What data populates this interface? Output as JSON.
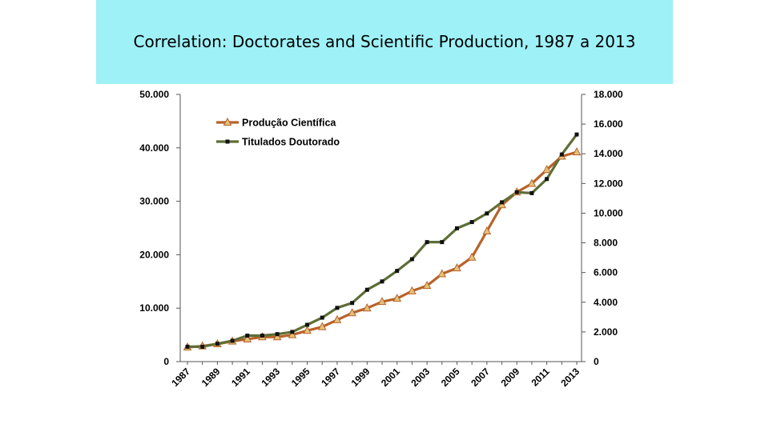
{
  "slide": {
    "title": "Correlation: Doctorates and Scientific Production, 1987 a 2013",
    "banner_color": "#9ef1f7"
  },
  "chart_data": {
    "type": "line",
    "title": "Correlation: Doctorates and Scientific Production, 1987 a 2013",
    "x": [
      1987,
      1988,
      1989,
      1990,
      1991,
      1992,
      1993,
      1994,
      1995,
      1996,
      1997,
      1998,
      1999,
      2000,
      2001,
      2002,
      2003,
      2004,
      2005,
      2006,
      2007,
      2008,
      2009,
      2010,
      2011,
      2012,
      2013
    ],
    "x_tick_labels": [
      "1987",
      "1989",
      "1991",
      "1993",
      "1995",
      "1997",
      "1999",
      "2001",
      "2003",
      "2005",
      "2007",
      "2009",
      "2011",
      "2013"
    ],
    "y_left_ticks": [
      "0",
      "10.000",
      "20.000",
      "30.000",
      "40.000",
      "50.000"
    ],
    "y_right_ticks": [
      "0",
      "2.000",
      "4.000",
      "6.000",
      "8.000",
      "10.000",
      "12.000",
      "14.000",
      "16.000",
      "18.000"
    ],
    "ylim_left": [
      0,
      50000
    ],
    "ylim_right": [
      0,
      18000
    ],
    "legend_position": "top-left",
    "series": [
      {
        "name": "Produção Científica",
        "axis": "left",
        "color": "#b8622a",
        "marker": "triangle",
        "marker_color": "#e3c27a",
        "values": [
          2700,
          2900,
          3300,
          3800,
          4200,
          4600,
          4600,
          5000,
          5800,
          6500,
          7800,
          9100,
          10000,
          11200,
          11800,
          13200,
          14200,
          16400,
          17500,
          19500,
          24400,
          29300,
          31700,
          33300,
          35900,
          38400,
          39200
        ]
      },
      {
        "name": "Titulados Doutorado",
        "axis": "right",
        "color": "#5d6e35",
        "marker": "square",
        "marker_color": "#111111",
        "values": [
          1000,
          1000,
          1200,
          1400,
          1750,
          1750,
          1850,
          2000,
          2480,
          2960,
          3620,
          3950,
          4840,
          5400,
          6110,
          6900,
          8050,
          8050,
          8980,
          9400,
          9980,
          10730,
          11410,
          11350,
          12300,
          13950,
          15300
        ]
      }
    ]
  }
}
